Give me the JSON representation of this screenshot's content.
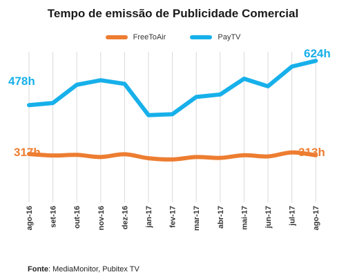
{
  "title": "Tempo de emissão de Publicidade Comercial",
  "source": {
    "label": "Fonte",
    "text": ": MediaMonitor, Pubitex TV"
  },
  "colors": {
    "freetoair": "#ED7D31",
    "paytv": "#17B0EA",
    "grid": "#d9d9d9"
  },
  "chart_data": {
    "type": "line",
    "title": "Tempo de emissão de Publicidade Comercial",
    "categories": [
      "ago-16",
      "set-16",
      "out-16",
      "nov-16",
      "dez-16",
      "jan-17",
      "fev-17",
      "mar-17",
      "abr-17",
      "mai-17",
      "jun-17",
      "jul-17",
      "ago-17"
    ],
    "series": [
      {
        "name": "FreeToAir",
        "color": "#ED7D31",
        "values": [
          317,
          312,
          314,
          307,
          316,
          303,
          299,
          307,
          304,
          313,
          309,
          322,
          313
        ]
      },
      {
        "name": "PayTV",
        "color": "#17B0EA",
        "values": [
          478,
          485,
          545,
          560,
          548,
          445,
          448,
          505,
          513,
          565,
          540,
          605,
          624
        ]
      }
    ],
    "annotations": {
      "paytv_start": "478h",
      "paytv_end": "624h",
      "freetoair_start": "317h",
      "freetoair_end": "313h"
    },
    "xlabel": "",
    "ylabel": "",
    "legend": "top-center",
    "grid": "vertical"
  }
}
